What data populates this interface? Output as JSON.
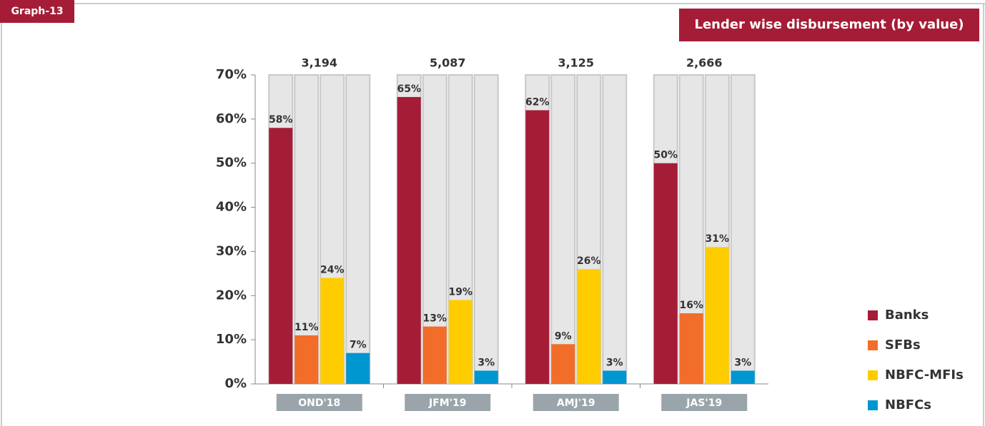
{
  "chart_data": {
    "type": "bar",
    "tag": "Graph-13",
    "title": "Lender wise  disbursement (by value)",
    "categories": [
      "OND'18",
      "JFM'19",
      "AMJ'19",
      "JAS'19"
    ],
    "group_labels": [
      "3,194",
      "5,087",
      "3,125",
      "2,666"
    ],
    "series": [
      {
        "name": "Banks",
        "color": "#a51c37",
        "values": [
          58,
          65,
          62,
          50
        ],
        "value_labels": [
          "58%",
          "65%",
          "62%",
          "50%"
        ]
      },
      {
        "name": "SFBs",
        "color": "#f26c2a",
        "values": [
          11,
          13,
          9,
          16
        ],
        "value_labels": [
          "11%",
          "13%",
          "9%",
          "16%"
        ]
      },
      {
        "name": "NBFC-MFIs",
        "color": "#ffcc00",
        "values": [
          24,
          19,
          26,
          31
        ],
        "value_labels": [
          "24%",
          "19%",
          "26%",
          "31%"
        ]
      },
      {
        "name": "NBFCs",
        "color": "#0096d0",
        "values": [
          7,
          3,
          3,
          3
        ],
        "value_labels": [
          "7%",
          "3%",
          "3%",
          "3%"
        ]
      }
    ],
    "ylim": [
      0,
      70
    ],
    "yticks": [
      {
        "value": 0,
        "label": "0%"
      },
      {
        "value": 10,
        "label": "10%"
      },
      {
        "value": 20,
        "label": "20%"
      },
      {
        "value": 30,
        "label": "30%"
      },
      {
        "value": 40,
        "label": "40%"
      },
      {
        "value": 50,
        "label": "50%"
      },
      {
        "value": 60,
        "label": "60%"
      },
      {
        "value": 70,
        "label": "70%"
      }
    ],
    "legend": "right"
  }
}
